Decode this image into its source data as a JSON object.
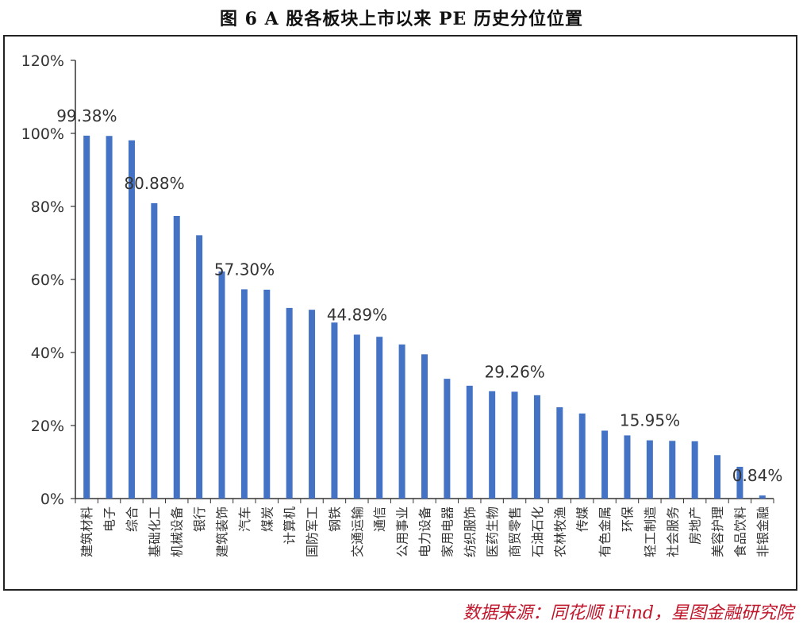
{
  "page": {
    "title": "图 6 A 股各板块上市以来 PE 历史分位位置",
    "source": "数据来源：同花顺 iFind，星图金融研究院"
  },
  "colors": {
    "bar": "#4472c4",
    "axis": "#333333",
    "text": "#333333",
    "source": "#c0162b"
  },
  "chart_data": {
    "type": "bar",
    "title": "图 6 A 股各板块上市以来 PE 历史分位位置",
    "xlabel": "",
    "ylabel": "",
    "ylim": [
      0,
      120
    ],
    "yticks": [
      "0%",
      "20%",
      "40%",
      "60%",
      "80%",
      "100%",
      "120%"
    ],
    "grid": false,
    "categories": [
      "建筑材料",
      "电子",
      "综合",
      "基础化工",
      "机械设备",
      "银行",
      "建筑装饰",
      "汽车",
      "煤炭",
      "计算机",
      "国防军工",
      "钢铁",
      "交通运输",
      "通信",
      "公用事业",
      "电力设备",
      "家用电器",
      "纺织服饰",
      "医药生物",
      "商贸零售",
      "石油石化",
      "农林牧渔",
      "传媒",
      "有色金属",
      "环保",
      "轻工制造",
      "社会服务",
      "房地产",
      "美容护理",
      "食品饮料",
      "非银金融"
    ],
    "values": [
      99.38,
      99.3,
      98.1,
      80.88,
      77.4,
      72.1,
      62.2,
      57.3,
      57.2,
      52.2,
      51.7,
      48.2,
      44.89,
      44.3,
      42.2,
      39.5,
      32.8,
      30.9,
      29.4,
      29.26,
      28.3,
      25.0,
      23.3,
      18.6,
      17.3,
      15.95,
      15.8,
      15.7,
      11.9,
      8.7,
      0.84
    ],
    "data_labels": [
      {
        "index": 0,
        "text": "99.38%"
      },
      {
        "index": 3,
        "text": "80.88%"
      },
      {
        "index": 7,
        "text": "57.30%"
      },
      {
        "index": 12,
        "text": "44.89%"
      },
      {
        "index": 19,
        "text": "29.26%"
      },
      {
        "index": 25,
        "text": "15.95%"
      },
      {
        "index": 30,
        "text": "0.84%"
      }
    ]
  }
}
